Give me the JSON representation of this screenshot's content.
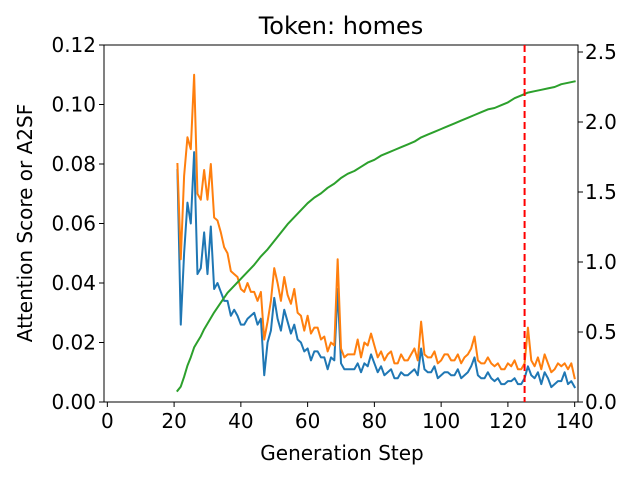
{
  "chart_data": {
    "type": "line",
    "title": "Token: homes",
    "xlabel": "Generation Step",
    "ylabel": "Attention Score or A2SF",
    "xlim": [
      -1,
      141
    ],
    "ylim": [
      0,
      0.12
    ],
    "y2lim": [
      0,
      2.55
    ],
    "xticks": [
      0,
      20,
      40,
      60,
      80,
      100,
      120,
      140
    ],
    "xtick_labels": [
      "0",
      "20",
      "40",
      "60",
      "80",
      "100",
      "120",
      "140"
    ],
    "yticks": [
      0,
      0.02,
      0.04,
      0.06,
      0.08,
      0.1,
      0.12
    ],
    "ytick_labels": [
      "0.00",
      "0.02",
      "0.04",
      "0.06",
      "0.08",
      "0.10",
      "0.12"
    ],
    "y2ticks": [
      0,
      0.5,
      1.0,
      1.5,
      2.0,
      2.5
    ],
    "y2tick_labels": [
      "0.0",
      "0.5",
      "1.0",
      "1.5",
      "2.0",
      "2.5"
    ],
    "grid": false,
    "series": [
      {
        "color": "#1f77b4",
        "axis": "left",
        "x": [
          21,
          22,
          23,
          24,
          25,
          26,
          27,
          28,
          29,
          30,
          31,
          32,
          33,
          34,
          35,
          36,
          37,
          38,
          39,
          40,
          41,
          42,
          43,
          44,
          45,
          46,
          47,
          48,
          49,
          50,
          51,
          52,
          53,
          54,
          55,
          56,
          57,
          58,
          59,
          60,
          61,
          62,
          63,
          64,
          65,
          66,
          67,
          68,
          69,
          70,
          71,
          72,
          73,
          74,
          75,
          76,
          77,
          78,
          79,
          80,
          81,
          82,
          83,
          84,
          85,
          86,
          87,
          88,
          89,
          90,
          91,
          92,
          93,
          94,
          95,
          96,
          97,
          98,
          99,
          100,
          101,
          102,
          103,
          104,
          105,
          106,
          107,
          108,
          109,
          110,
          111,
          112,
          113,
          114,
          115,
          116,
          117,
          118,
          119,
          120,
          121,
          122,
          123,
          124,
          125,
          126,
          127,
          128,
          129,
          130,
          131,
          132,
          133,
          134,
          135,
          136,
          137,
          138,
          139,
          140
        ],
        "values": [
          0.078,
          0.026,
          0.05,
          0.067,
          0.06,
          0.084,
          0.043,
          0.045,
          0.057,
          0.043,
          0.059,
          0.038,
          0.04,
          0.037,
          0.034,
          0.034,
          0.029,
          0.031,
          0.029,
          0.026,
          0.026,
          0.028,
          0.029,
          0.03,
          0.026,
          0.028,
          0.009,
          0.02,
          0.024,
          0.035,
          0.028,
          0.024,
          0.031,
          0.027,
          0.023,
          0.026,
          0.021,
          0.02,
          0.017,
          0.018,
          0.014,
          0.017,
          0.017,
          0.015,
          0.015,
          0.011,
          0.015,
          0.014,
          0.038,
          0.013,
          0.011,
          0.011,
          0.011,
          0.011,
          0.013,
          0.01,
          0.013,
          0.012,
          0.016,
          0.013,
          0.01,
          0.012,
          0.009,
          0.01,
          0.011,
          0.008,
          0.008,
          0.01,
          0.009,
          0.009,
          0.01,
          0.011,
          0.009,
          0.018,
          0.011,
          0.01,
          0.01,
          0.012,
          0.008,
          0.009,
          0.01,
          0.01,
          0.009,
          0.009,
          0.011,
          0.008,
          0.009,
          0.01,
          0.012,
          0.015,
          0.009,
          0.008,
          0.008,
          0.01,
          0.008,
          0.007,
          0.008,
          0.006,
          0.006,
          0.007,
          0.007,
          0.008,
          0.006,
          0.006,
          0.008,
          0.012,
          0.009,
          0.008,
          0.01,
          0.006,
          0.01,
          0.008,
          0.005,
          0.006,
          0.007,
          0.007,
          0.01,
          0.006,
          0.007,
          0.005
        ]
      },
      {
        "color": "#ff7f0e",
        "axis": "left",
        "x": [
          21,
          22,
          23,
          24,
          25,
          26,
          27,
          28,
          29,
          30,
          31,
          32,
          33,
          34,
          35,
          36,
          37,
          38,
          39,
          40,
          41,
          42,
          43,
          44,
          45,
          46,
          47,
          48,
          49,
          50,
          51,
          52,
          53,
          54,
          55,
          56,
          57,
          58,
          59,
          60,
          61,
          62,
          63,
          64,
          65,
          66,
          67,
          68,
          69,
          70,
          71,
          72,
          73,
          74,
          75,
          76,
          77,
          78,
          79,
          80,
          81,
          82,
          83,
          84,
          85,
          86,
          87,
          88,
          89,
          90,
          91,
          92,
          93,
          94,
          95,
          96,
          97,
          98,
          99,
          100,
          101,
          102,
          103,
          104,
          105,
          106,
          107,
          108,
          109,
          110,
          111,
          112,
          113,
          114,
          115,
          116,
          117,
          118,
          119,
          120,
          121,
          122,
          123,
          124,
          125,
          126,
          127,
          128,
          129,
          130,
          131,
          132,
          133,
          134,
          135,
          136,
          137,
          138,
          139,
          140
        ],
        "values": [
          0.08,
          0.048,
          0.076,
          0.089,
          0.085,
          0.11,
          0.07,
          0.068,
          0.078,
          0.068,
          0.08,
          0.062,
          0.061,
          0.057,
          0.052,
          0.05,
          0.044,
          0.043,
          0.042,
          0.038,
          0.037,
          0.04,
          0.037,
          0.037,
          0.034,
          0.037,
          0.021,
          0.027,
          0.034,
          0.045,
          0.04,
          0.034,
          0.042,
          0.036,
          0.033,
          0.038,
          0.03,
          0.029,
          0.024,
          0.029,
          0.023,
          0.025,
          0.025,
          0.021,
          0.022,
          0.017,
          0.02,
          0.019,
          0.048,
          0.018,
          0.015,
          0.016,
          0.016,
          0.016,
          0.021,
          0.015,
          0.02,
          0.019,
          0.023,
          0.019,
          0.015,
          0.017,
          0.014,
          0.016,
          0.017,
          0.013,
          0.013,
          0.016,
          0.014,
          0.014,
          0.016,
          0.018,
          0.014,
          0.027,
          0.016,
          0.015,
          0.015,
          0.017,
          0.013,
          0.014,
          0.016,
          0.016,
          0.014,
          0.014,
          0.016,
          0.013,
          0.015,
          0.016,
          0.018,
          0.022,
          0.014,
          0.013,
          0.013,
          0.015,
          0.013,
          0.012,
          0.013,
          0.011,
          0.011,
          0.013,
          0.012,
          0.014,
          0.011,
          0.011,
          0.013,
          0.025,
          0.014,
          0.012,
          0.015,
          0.011,
          0.016,
          0.013,
          0.01,
          0.011,
          0.013,
          0.012,
          0.013,
          0.011,
          0.013,
          0.008
        ]
      },
      {
        "color": "#2ca02c",
        "axis": "right",
        "x": [
          21,
          22,
          23,
          24,
          25,
          26,
          27,
          28,
          29,
          30,
          32,
          34,
          36,
          38,
          40,
          42,
          44,
          46,
          48,
          50,
          52,
          54,
          56,
          58,
          60,
          62,
          64,
          66,
          68,
          69,
          70,
          72,
          74,
          76,
          78,
          80,
          82,
          84,
          86,
          88,
          90,
          92,
          94,
          96,
          98,
          100,
          102,
          104,
          106,
          108,
          110,
          112,
          114,
          116,
          118,
          120,
          122,
          124,
          126,
          128,
          130,
          132,
          134,
          136,
          138,
          140
        ],
        "values": [
          0.08,
          0.11,
          0.18,
          0.26,
          0.32,
          0.39,
          0.43,
          0.47,
          0.52,
          0.56,
          0.64,
          0.71,
          0.78,
          0.83,
          0.88,
          0.93,
          0.98,
          1.04,
          1.09,
          1.15,
          1.21,
          1.27,
          1.32,
          1.37,
          1.42,
          1.46,
          1.49,
          1.53,
          1.56,
          1.58,
          1.6,
          1.63,
          1.65,
          1.68,
          1.71,
          1.73,
          1.76,
          1.78,
          1.8,
          1.82,
          1.84,
          1.86,
          1.89,
          1.91,
          1.93,
          1.95,
          1.97,
          1.99,
          2.01,
          2.03,
          2.05,
          2.07,
          2.09,
          2.1,
          2.12,
          2.14,
          2.17,
          2.19,
          2.21,
          2.22,
          2.23,
          2.24,
          2.25,
          2.27,
          2.28,
          2.29
        ]
      }
    ],
    "vline": {
      "x": 125,
      "color": "#ff0000",
      "style": "dashed"
    }
  }
}
